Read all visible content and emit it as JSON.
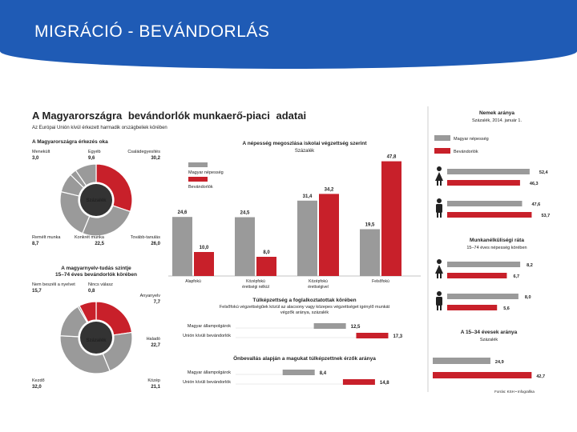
{
  "slide": {
    "title": "MIGRÁCIÓ - BEVÁNDORLÁS"
  },
  "infographic": {
    "title_part1": "A Magyarországra",
    "title_part2": "bevándorlók munkaerő-piaci",
    "title_part3": "adatai",
    "subtitle": "Az Európai Unión kívül érkezett harmadik országbeliek körében",
    "source": "Forrás: KSH • Infografika"
  },
  "colors": {
    "red": "#c8202a",
    "gray": "#9a9a9a",
    "banner": "#1f5bb5"
  },
  "legend": {
    "hu": "Magyar népesség",
    "imm": "Bevándorlók"
  },
  "donut_reason": {
    "title": "A Magyarországra érkezés oka",
    "center": "Százalék",
    "labels": [
      {
        "name": "Menekült",
        "value": "3,0"
      },
      {
        "name": "Egyéb",
        "value": "9,6"
      },
      {
        "name": "Családegyesítés",
        "value": "30,2"
      },
      {
        "name": "Remélt munka",
        "value": "8,7"
      },
      {
        "name": "Konkrét munka",
        "value": "22,5"
      },
      {
        "name": "Tovább-tanulás",
        "value": "26,0"
      }
    ]
  },
  "donut_lang": {
    "title": "A magyarnyelv-tudás szintje",
    "title2": "15–74 éves bevándorlók körében",
    "center": "Százalék",
    "labels": [
      {
        "name": "Nem beszéli a nyelvet",
        "value": "15,7"
      },
      {
        "name": "Nincs válasz",
        "value": "0,8"
      },
      {
        "name": "Anyanyelv",
        "value": "7,7"
      },
      {
        "name": "Haladó",
        "value": "22,7"
      },
      {
        "name": "Kezdő",
        "value": "32,0"
      },
      {
        "name": "Közép",
        "value": "21,1"
      }
    ]
  },
  "chart_data": [
    {
      "type": "bar",
      "title": "A népesség megoszlása iskolai végzettség szerint",
      "ylabel": "Százalék",
      "categories": [
        "Alapfokú",
        "Középfokú érettségi nélkül",
        "Középfokú érettségivel",
        "Felsőfokú"
      ],
      "series": [
        {
          "name": "Magyar népesség",
          "values": [
            24.6,
            24.5,
            31.4,
            19.5
          ],
          "labels": [
            "24,6",
            "24,5",
            "31,4",
            "19,5"
          ]
        },
        {
          "name": "Bevándorlók",
          "values": [
            10.0,
            8.0,
            34.2,
            47.8
          ],
          "labels": [
            "10,0",
            "8,0",
            "34,2",
            "47,8"
          ]
        }
      ],
      "ylim": [
        0,
        50
      ]
    },
    {
      "type": "bar",
      "title": "Nemek aránya",
      "subtitle": "Százalék, 2014. január 1.",
      "categories": [
        "Nő",
        "Férfi"
      ],
      "series": [
        {
          "name": "Magyar népesség",
          "values": [
            52.4,
            47.6
          ],
          "labels": [
            "52,4",
            "47,6"
          ]
        },
        {
          "name": "Bevándorlók",
          "values": [
            46.3,
            53.7
          ],
          "labels": [
            "46,3",
            "53,7"
          ]
        }
      ]
    },
    {
      "type": "bar",
      "title": "Munkanélküliségi ráta",
      "subtitle": "15–74 éves népesség körében",
      "categories": [
        "Nő",
        "Férfi"
      ],
      "series": [
        {
          "name": "Magyar népesség",
          "values": [
            8.2,
            8.0
          ],
          "labels": [
            "8,2",
            "8,0"
          ]
        },
        {
          "name": "Bevándorlók",
          "values": [
            6.7,
            5.6
          ],
          "labels": [
            "6,7",
            "5,6"
          ]
        }
      ]
    },
    {
      "type": "bar",
      "title": "Túlképzettség a foglalkoztatottak körében",
      "subtitle": "Felsőfokú végzettségűek közül az alacsony vagy közepes végzettséget igénylő munkát végzők aránya, százalék",
      "categories": [
        "Magyar állampolgárok",
        "Unión kívüli bevándorlók"
      ],
      "values": [
        12.5,
        17.3
      ],
      "labels": [
        "12,5",
        "17,3"
      ]
    },
    {
      "type": "bar",
      "title": "Önbevallás alapján a magukat túlképzettnek érzők aránya",
      "categories": [
        "Magyar állampolgárok",
        "Unión kívüli bevándorlók"
      ],
      "values": [
        8.4,
        14.8
      ],
      "labels": [
        "8,4",
        "14,8"
      ]
    },
    {
      "type": "bar",
      "title": "A 15–34 évesek aránya",
      "subtitle": "Százalék",
      "categories": [
        "Magyar népesség",
        "Bevándorlók"
      ],
      "values": [
        24.9,
        42.7
      ],
      "labels": [
        "24,9",
        "42,7"
      ]
    }
  ]
}
